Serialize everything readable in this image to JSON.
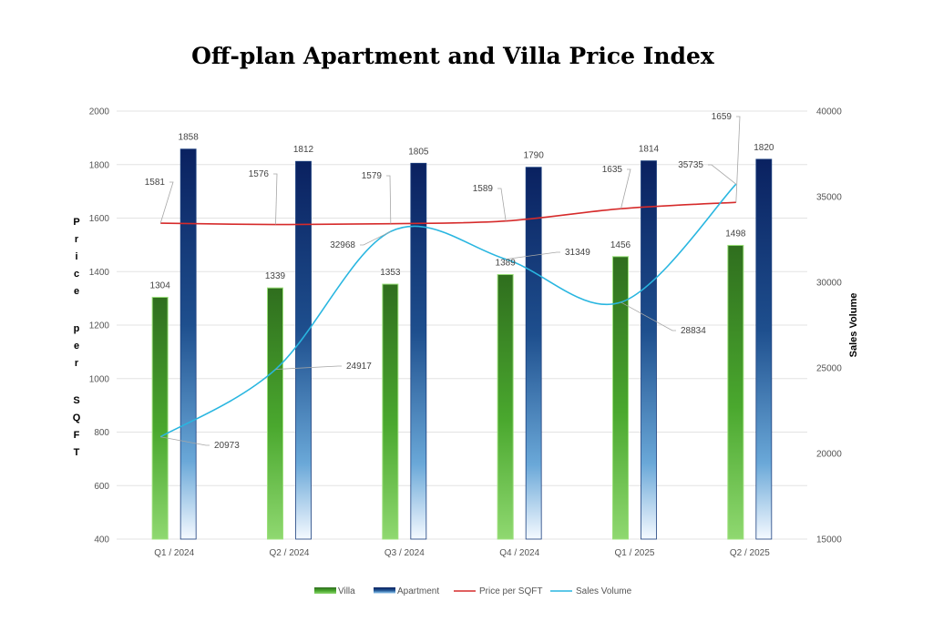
{
  "chart_data": {
    "type": "bar",
    "title": "Off-plan Apartment and Villa Price Index",
    "categories": [
      "Q1 / 2024",
      "Q2 /  2024",
      "Q3 / 2024",
      "Q4 / 2024",
      "Q1 / 2025",
      "Q2 / 2025"
    ],
    "ylabel": "Price per SQFT",
    "y2label": "Sales Volume",
    "ylim": [
      400,
      2000
    ],
    "yticks": [
      "400",
      "600",
      "800",
      "1000",
      "1200",
      "1400",
      "1600",
      "1800",
      "2000"
    ],
    "y2lim": [
      15000,
      40000
    ],
    "y2ticks": [
      "15000",
      "20000",
      "25000",
      "30000",
      "35000",
      "40000"
    ],
    "grid": true,
    "legend_position": "bottom",
    "series": [
      {
        "name": "Villa",
        "type": "bar",
        "axis": "left",
        "color": "#3c9a2a",
        "values": [
          1304,
          1339,
          1353,
          1389,
          1456,
          1498
        ],
        "labels": [
          "1304",
          "1339",
          "1353",
          "1389",
          "1456",
          "1498"
        ]
      },
      {
        "name": "Apartment",
        "type": "bar",
        "axis": "left",
        "color": "#0b2a6b",
        "values": [
          1858,
          1812,
          1805,
          1790,
          1814,
          1820
        ],
        "labels": [
          "1858",
          "1812",
          "1805",
          "1790",
          "1814",
          "1820"
        ]
      },
      {
        "name": "Price per SQFT",
        "type": "line",
        "axis": "left",
        "color": "#d62b2b",
        "values": [
          1581,
          1576,
          1579,
          1589,
          1635,
          1659
        ],
        "labels": [
          "1581",
          "1576",
          "1579",
          "1589",
          "1635",
          "1659"
        ]
      },
      {
        "name": "Sales Volume",
        "type": "line",
        "axis": "right",
        "color": "#29b6e0",
        "values": [
          20973,
          24917,
          32968,
          31349,
          28834,
          35735
        ],
        "labels": [
          "20973",
          "24917",
          "32968",
          "31349",
          "28834",
          "35735"
        ]
      }
    ]
  }
}
